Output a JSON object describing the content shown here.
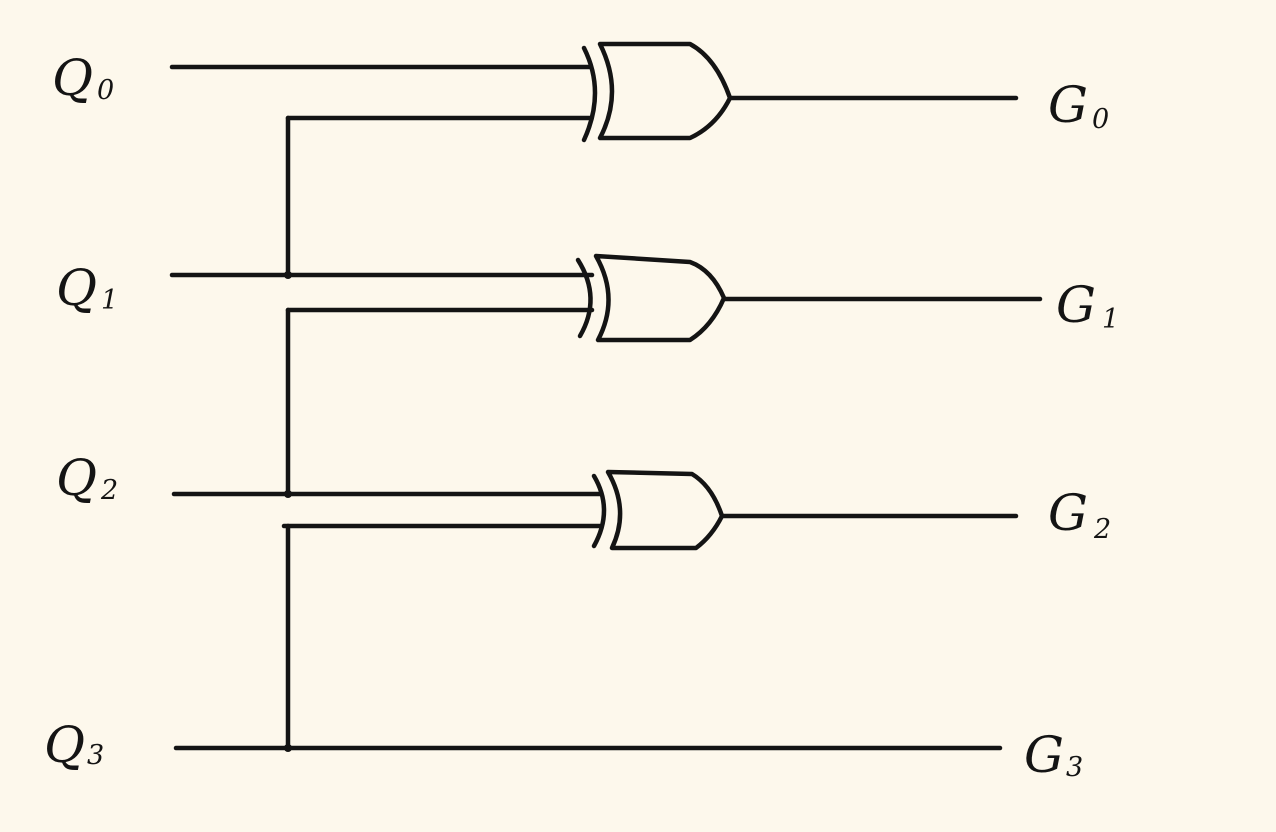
{
  "colors": {
    "background": "#fdf8ec",
    "ink": "#141414"
  },
  "inputs": [
    {
      "letter": "Q",
      "index": "0"
    },
    {
      "letter": "Q",
      "index": "1"
    },
    {
      "letter": "Q",
      "index": "2"
    },
    {
      "letter": "Q",
      "index": "3"
    }
  ],
  "outputs": [
    {
      "letter": "G",
      "index": "0"
    },
    {
      "letter": "G",
      "index": "1"
    },
    {
      "letter": "G",
      "index": "2"
    },
    {
      "letter": "G",
      "index": "3"
    }
  ],
  "gates": [
    {
      "type": "XOR",
      "inputs": [
        "Q0",
        "Q1"
      ],
      "output": "G0"
    },
    {
      "type": "XOR",
      "inputs": [
        "Q1",
        "Q2"
      ],
      "output": "G1"
    },
    {
      "type": "XOR",
      "inputs": [
        "Q2",
        "Q3"
      ],
      "output": "G2"
    }
  ],
  "direct_connections": [
    {
      "from": "Q3",
      "to": "G3"
    }
  ]
}
